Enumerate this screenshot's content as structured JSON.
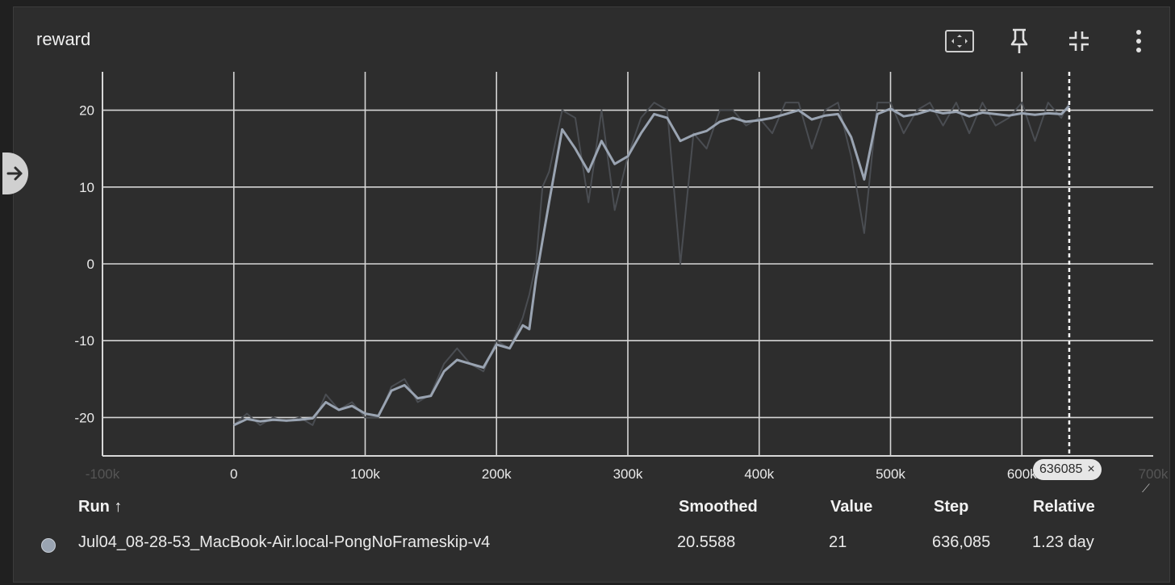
{
  "card": {
    "title": "reward",
    "toolbar": [
      {
        "icon": "fit-to-data-icon"
      },
      {
        "icon": "pin-icon"
      },
      {
        "icon": "collapse-icon"
      },
      {
        "icon": "more-vert-icon"
      }
    ]
  },
  "tooltip": {
    "step_label": "636085",
    "close": "×"
  },
  "table": {
    "headers": {
      "run": "Run ↑",
      "smoothed": "Smoothed",
      "value": "Value",
      "step": "Step",
      "relative": "Relative"
    },
    "row": {
      "color": "#9aa4b2",
      "run": "Jul04_08-28-53_MacBook-Air.local-PongNoFrameskip-v4",
      "smoothed": "20.5588",
      "value": "21",
      "step": "636,085",
      "relative": "1.23 day"
    }
  },
  "chart_data": {
    "type": "line",
    "title": "reward",
    "xlabel": "",
    "ylabel": "",
    "xlim": [
      -100000,
      700000
    ],
    "ylim": [
      -25,
      25
    ],
    "grid": true,
    "x_ticks": [
      "-100k",
      "0",
      "100k",
      "200k",
      "300k",
      "400k",
      "500k",
      "600k",
      "700k"
    ],
    "y_ticks": [
      "20",
      "10",
      "0",
      "-10",
      "-20"
    ],
    "marker_step": 636085,
    "series": [
      {
        "name": "Jul04_08-28-53_MacBook-Air.local-PongNoFrameskip-v4",
        "color": "#9aa4b2",
        "x": [
          0,
          10000,
          20000,
          30000,
          40000,
          50000,
          60000,
          70000,
          80000,
          90000,
          100000,
          110000,
          120000,
          130000,
          140000,
          150000,
          160000,
          170000,
          180000,
          190000,
          200000,
          210000,
          220000,
          225000,
          230000,
          235000,
          240000,
          250000,
          260000,
          270000,
          280000,
          290000,
          300000,
          310000,
          320000,
          330000,
          340000,
          350000,
          360000,
          370000,
          380000,
          390000,
          400000,
          410000,
          420000,
          430000,
          440000,
          450000,
          460000,
          470000,
          480000,
          490000,
          500000,
          510000,
          520000,
          530000,
          540000,
          550000,
          560000,
          570000,
          580000,
          590000,
          600000,
          610000,
          620000,
          630000,
          636085
        ],
        "smoothed": [
          -21,
          -20.2,
          -20.5,
          -20.3,
          -20.4,
          -20.3,
          -20.1,
          -18,
          -19,
          -18.5,
          -19.5,
          -19.8,
          -16.5,
          -15.8,
          -17.5,
          -17.2,
          -14,
          -12.5,
          -13,
          -13.5,
          -10.5,
          -11,
          -8,
          -8.5,
          -2,
          3,
          8,
          17.5,
          15,
          12,
          16,
          13,
          14,
          17,
          19.5,
          19,
          16,
          16.8,
          17.3,
          18.5,
          19,
          18.5,
          18.7,
          19,
          19.5,
          20,
          18.8,
          19.3,
          19.5,
          16.5,
          11,
          19.5,
          20.2,
          19.2,
          19.5,
          20,
          19.6,
          19.8,
          19.2,
          19.7,
          19.5,
          19.3,
          19.6,
          19.4,
          19.6,
          19.5,
          20.5588
        ],
        "raw": [
          -21,
          -19.5,
          -21,
          -20,
          -20.5,
          -20,
          -21,
          -17,
          -19,
          -18,
          -20,
          -20,
          -16,
          -15,
          -18,
          -17,
          -13,
          -11,
          -13,
          -14,
          -10,
          -11,
          -7,
          -4,
          0,
          10,
          12,
          20,
          19,
          8,
          20,
          7,
          14,
          19,
          21,
          20,
          0,
          17,
          15,
          20,
          20,
          18,
          19,
          17,
          21,
          21,
          15,
          20,
          21,
          14,
          4,
          21,
          21,
          17,
          20,
          21,
          18,
          21,
          17,
          21,
          18,
          19,
          21,
          16,
          21,
          19,
          21
        ]
      }
    ]
  }
}
